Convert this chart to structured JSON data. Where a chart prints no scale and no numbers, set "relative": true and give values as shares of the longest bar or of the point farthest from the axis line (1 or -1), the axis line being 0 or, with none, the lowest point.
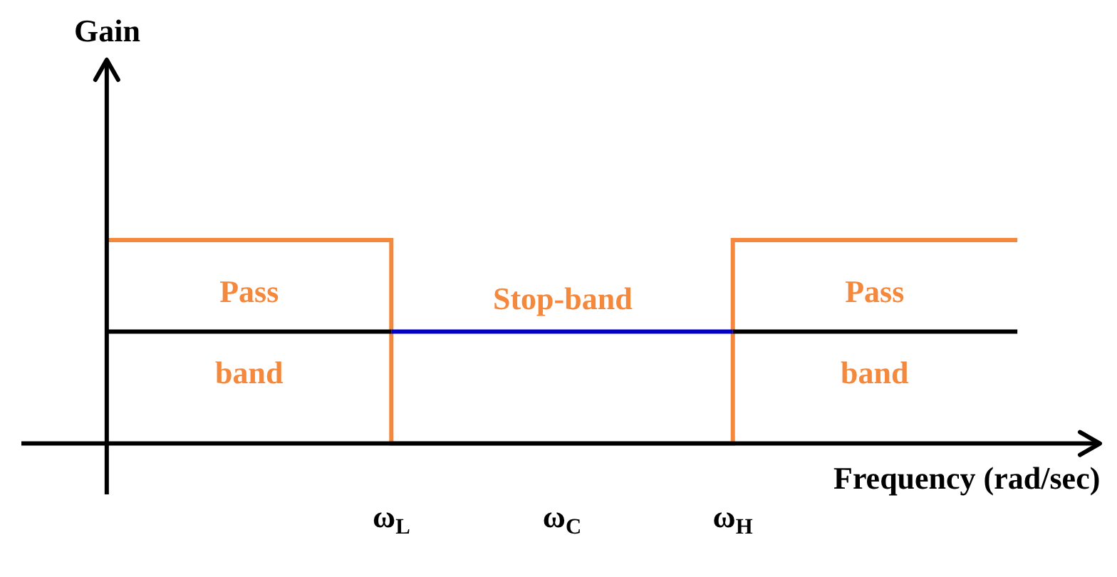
{
  "chart_data": {
    "type": "line",
    "relative": true,
    "categories": [
      null,
      null,
      null,
      null,
      null,
      "ω$_{L}$",
      null,
      null,
      "ω$_{C}$",
      null,
      null,
      "ω$_{H}$",
      null,
      null,
      null,
      null,
      null
    ],
    "series": [
      {
        "type": "step",
        "color": "#f4883c",
        "values": [
          1,
          1,
          1,
          1,
          1,
          0,
          0,
          0,
          0,
          0,
          0,
          1,
          1,
          1,
          1,
          1,
          1
        ]
      },
      {
        "color": "#000000",
        "values": [
          0.55,
          0.55,
          0.55,
          0.55,
          0.55,
          0.55,
          null,
          null,
          null,
          null,
          null,
          0.55,
          0.55,
          0.55,
          0.55,
          0.55,
          0.55
        ]
      },
      {
        "color": "#0000cc",
        "values": [
          null,
          null,
          null,
          null,
          null,
          0.55,
          0.55,
          0.55,
          0.55,
          0.55,
          0.55,
          0.55,
          null,
          null,
          null,
          null,
          null
        ]
      }
    ],
    "annotations": [
      "Gain",
      "Pass\nband",
      "Stop-band",
      "Pass\nband",
      "Frequency (rad/sec)"
    ],
    "grid": false,
    "marker": "none",
    "line_style": "solid"
  }
}
